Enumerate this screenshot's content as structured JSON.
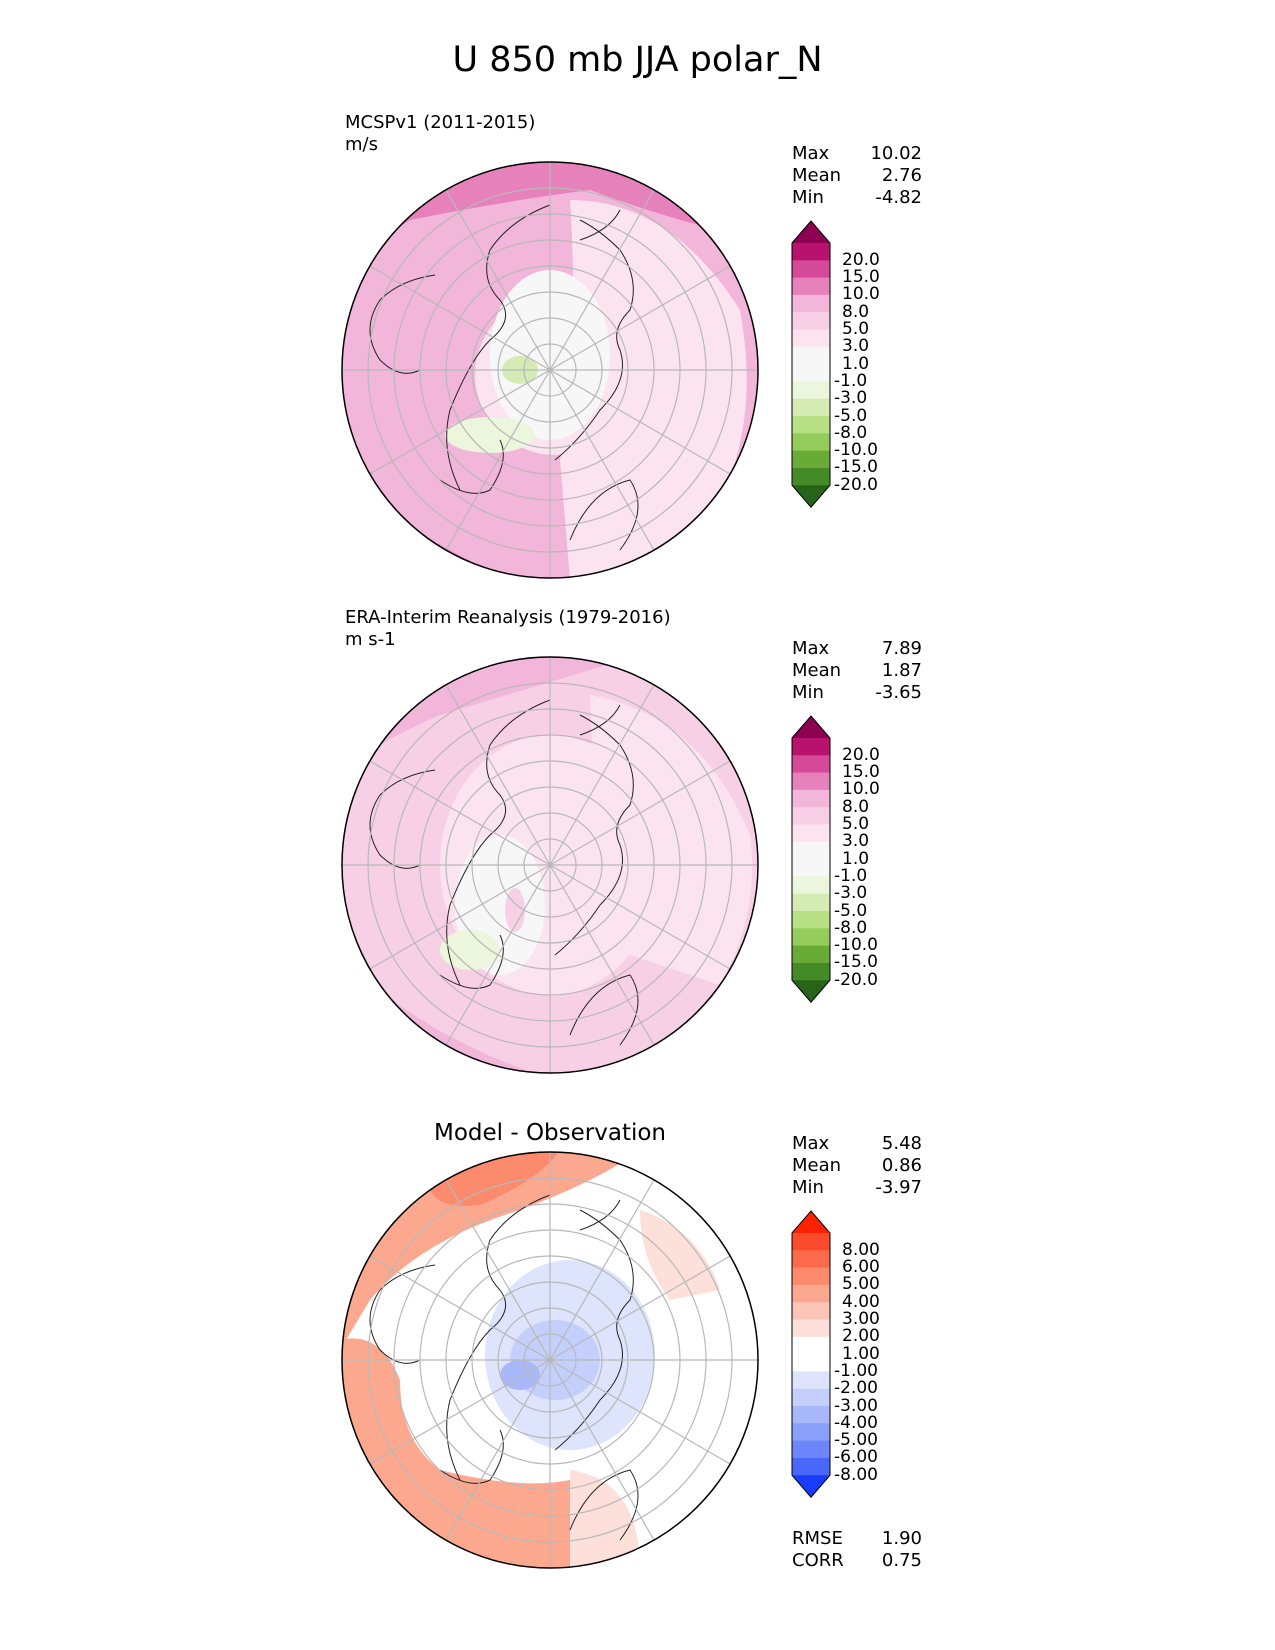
{
  "title": "U 850 mb JJA polar_N",
  "colors": {
    "pos_div": [
      "#f7f7f7",
      "#fbe4f0",
      "#f8d0e6",
      "#f1b6da",
      "#e681bc",
      "#d44a99",
      "#b7126d",
      "#8e0152"
    ],
    "neg_div": [
      "#f7f7f7",
      "#ecf6dd",
      "#d4ecb4",
      "#b8e186",
      "#94cd5c",
      "#6aab38",
      "#448a26",
      "#276419"
    ],
    "diff_pos": [
      "#ffffff",
      "#fde0d9",
      "#fcc5b6",
      "#fca88f",
      "#fb8b6c",
      "#fb6a4a",
      "#fc4a2c",
      "#ff2200"
    ],
    "diff_neg": [
      "#ffffff",
      "#dde4fb",
      "#c4d0fb",
      "#a8b8fb",
      "#8ba0fb",
      "#6d86fb",
      "#4a67fb",
      "#1a3cff"
    ]
  },
  "panels": [
    {
      "id": "model",
      "title": "MCSPv1 (2011-2015)",
      "units": "m/s",
      "center_title": "",
      "stats": [
        {
          "label": "Max",
          "value": "10.02"
        },
        {
          "label": "Mean",
          "value": "2.76"
        },
        {
          "label": "Min",
          "value": "-4.82"
        }
      ],
      "ticks": [
        "20.0",
        "15.0",
        "10.0",
        "8.0",
        "5.0",
        "3.0",
        "1.0",
        "-1.0",
        "-3.0",
        "-5.0",
        "-8.0",
        "-10.0",
        "-15.0",
        "-20.0"
      ],
      "extra_stats": []
    },
    {
      "id": "obs",
      "title": "ERA-Interim Reanalysis (1979-2016)",
      "units": "m s-1",
      "center_title": "",
      "stats": [
        {
          "label": "Max",
          "value": "7.89"
        },
        {
          "label": "Mean",
          "value": "1.87"
        },
        {
          "label": "Min",
          "value": "-3.65"
        }
      ],
      "ticks": [
        "20.0",
        "15.0",
        "10.0",
        "8.0",
        "5.0",
        "3.0",
        "1.0",
        "-1.0",
        "-3.0",
        "-5.0",
        "-8.0",
        "-10.0",
        "-15.0",
        "-20.0"
      ],
      "extra_stats": []
    },
    {
      "id": "diff",
      "title": "",
      "units": "",
      "center_title": "Model - Observation",
      "stats": [
        {
          "label": "Max",
          "value": "5.48"
        },
        {
          "label": "Mean",
          "value": "0.86"
        },
        {
          "label": "Min",
          "value": "-3.97"
        }
      ],
      "ticks": [
        "8.00",
        "6.00",
        "5.00",
        "4.00",
        "3.00",
        "2.00",
        "1.00",
        "-1.00",
        "-2.00",
        "-3.00",
        "-4.00",
        "-5.00",
        "-6.00",
        "-8.00"
      ],
      "extra_stats": [
        {
          "label": "RMSE",
          "value": "1.90"
        },
        {
          "label": "CORR",
          "value": "0.75"
        }
      ]
    }
  ]
}
